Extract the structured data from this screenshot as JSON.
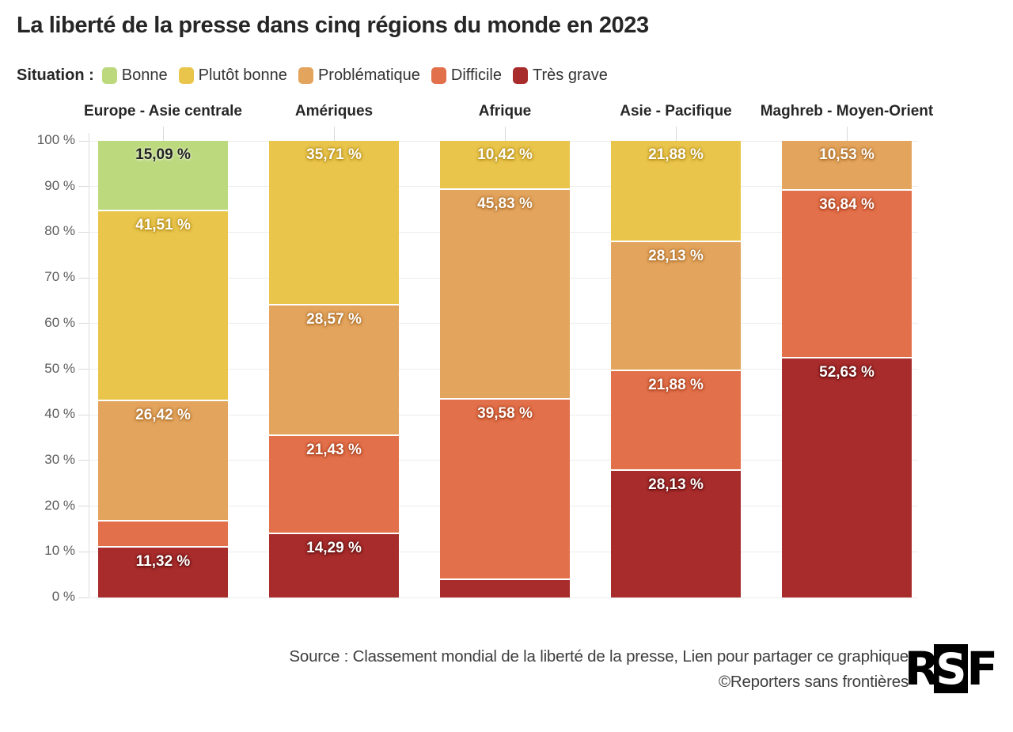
{
  "title": "La liberté de la presse dans cinq régions du monde en 2023",
  "legend": {
    "label": "Situation :",
    "items": [
      {
        "label": "Bonne",
        "color": "#bcd97d"
      },
      {
        "label": "Plutôt bonne",
        "color": "#e9c54c"
      },
      {
        "label": "Problématique",
        "color": "#e3a45d"
      },
      {
        "label": "Difficile",
        "color": "#e2704a"
      },
      {
        "label": "Très grave",
        "color": "#a92c2c"
      }
    ]
  },
  "chart_data": {
    "type": "bar",
    "stacked": true,
    "unit": "%",
    "title": "La liberté de la presse dans cinq régions du monde en 2023",
    "xlabel": "",
    "ylabel": "",
    "ylim": [
      0,
      100
    ],
    "grid": true,
    "legend_position": "top",
    "yticks": [
      "100 %",
      "90 %",
      "80 %",
      "70 %",
      "60 %",
      "50 %",
      "40 %",
      "30 %",
      "20 %",
      "10 %",
      "0 %"
    ],
    "categories": [
      "Europe - Asie centrale",
      "Amériques",
      "Afrique",
      "Asie - Pacifique",
      "Maghreb - Moyen-Orient"
    ],
    "series": [
      {
        "name": "Bonne",
        "color": "#bcd97d",
        "label_color": "#222222",
        "label_shadow": "rgba(255,255,255,0.45)",
        "values": [
          15.09,
          0,
          0,
          0,
          0
        ],
        "labels": [
          "15,09 %",
          "",
          "",
          "",
          ""
        ]
      },
      {
        "name": "Plutôt bonne",
        "color": "#e9c54c",
        "label_color": "#ffffff",
        "label_shadow": "rgba(176,138,23,0.9)",
        "values": [
          41.51,
          35.71,
          10.42,
          21.88,
          0
        ],
        "labels": [
          "41,51 %",
          "35,71 %",
          "10,42 %",
          "21,88 %",
          ""
        ]
      },
      {
        "name": "Problématique",
        "color": "#e3a45d",
        "label_color": "#ffffff",
        "label_shadow": "rgba(168,106,38,0.9)",
        "values": [
          26.42,
          28.57,
          45.83,
          28.13,
          10.53
        ],
        "labels": [
          "26,42 %",
          "28,57 %",
          "45,83 %",
          "28,13 %",
          "10,53 %"
        ]
      },
      {
        "name": "Difficile",
        "color": "#e2704a",
        "label_color": "#ffffff",
        "label_shadow": "rgba(163,60,26,0.9)",
        "values": [
          5.66,
          21.43,
          39.58,
          21.88,
          36.84
        ],
        "labels": [
          "",
          "21,43 %",
          "39,58 %",
          "21,88 %",
          "36,84 %"
        ]
      },
      {
        "name": "Très grave",
        "color": "#a92c2c",
        "label_color": "#ffffff",
        "label_shadow": "rgba(92,14,14,0.9)",
        "values": [
          11.32,
          14.29,
          4.17,
          28.13,
          52.63
        ],
        "labels": [
          "11,32 %",
          "14,29 %",
          "",
          "28,13 %",
          "52,63 %"
        ]
      }
    ]
  },
  "footer": {
    "source_text": "Source : Classement mondial de la liberté de la presse, ",
    "share_link_text": "Lien pour partager ce graphique",
    "copyright": "©Reporters sans frontières",
    "logo_letters": [
      "R",
      "S",
      "F"
    ]
  }
}
